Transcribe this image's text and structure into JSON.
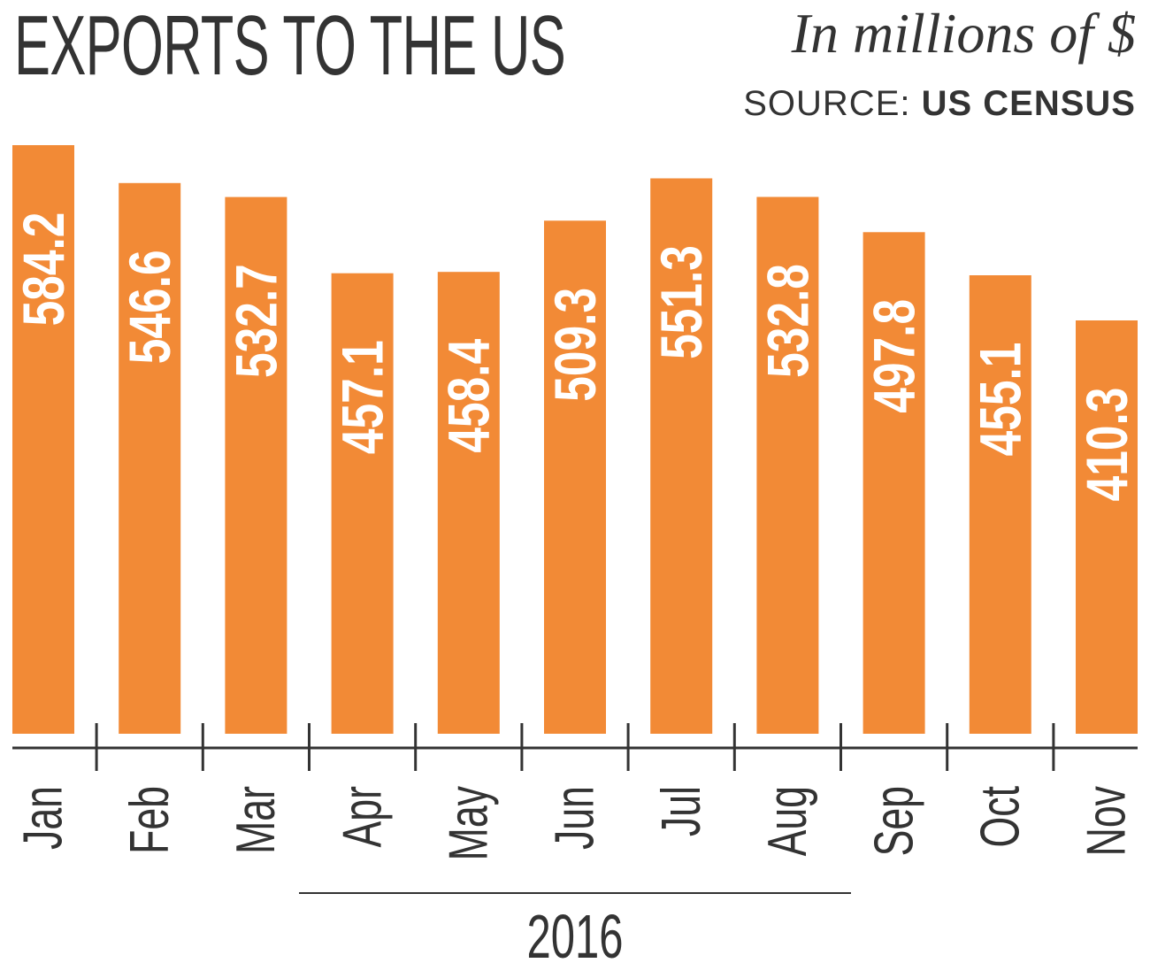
{
  "header": {
    "title": "EXPORTS TO THE US",
    "units": "In millions of $",
    "source_prefix": "SOURCE:",
    "source_name": "US CENSUS"
  },
  "colors": {
    "bar": "#F28A36",
    "text": "#333333",
    "bar_label": "#FFFFFF"
  },
  "chart_data": {
    "type": "bar",
    "categories": [
      "Jan",
      "Feb",
      "Mar",
      "Apr",
      "May",
      "Jun",
      "Jul",
      "Aug",
      "Sep",
      "Oct",
      "Nov"
    ],
    "values": [
      584.2,
      546.6,
      532.7,
      457.1,
      458.4,
      509.3,
      551.3,
      532.8,
      497.8,
      455.1,
      410.3
    ],
    "value_labels": [
      "584.2",
      "546.6",
      "532.7",
      "457.1",
      "458.4",
      "509.3",
      "551.3",
      "532.8",
      "497.8",
      "455.1",
      "410.3"
    ],
    "year_label": "2016",
    "title": "EXPORTS TO THE US",
    "ylabel": "In millions of $",
    "grid": false,
    "legend": "none"
  }
}
